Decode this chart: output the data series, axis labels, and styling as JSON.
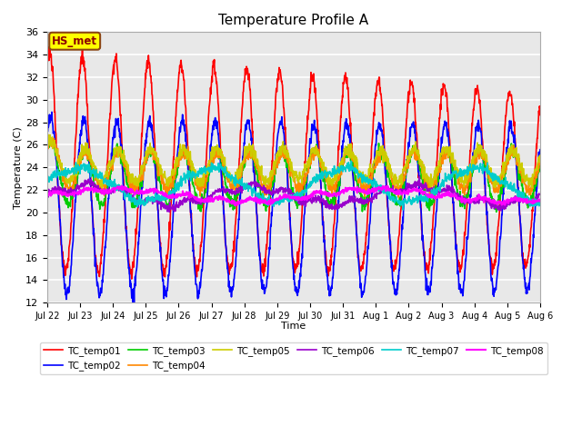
{
  "title": "Temperature Profile A",
  "xlabel": "Time",
  "ylabel": "Temperature (C)",
  "ylim": [
    12,
    36
  ],
  "background_color": "#e8e8e8",
  "fig_background": "#ffffff",
  "annotation_text": "HS_met",
  "annotation_bg": "#ffff00",
  "annotation_border": "#8B4513",
  "legend_entries": [
    "TC_temp01",
    "TC_temp02",
    "TC_temp03",
    "TC_temp04",
    "TC_temp05",
    "TC_temp06",
    "TC_temp07",
    "TC_temp08"
  ],
  "series_colors": [
    "#ff0000",
    "#0000ff",
    "#00cc00",
    "#ff8800",
    "#cccc00",
    "#9900cc",
    "#00cccc",
    "#ff00ff"
  ],
  "series_widths": [
    1.2,
    1.2,
    1.2,
    1.2,
    1.2,
    1.2,
    1.2,
    1.5
  ],
  "xtick_labels": [
    "Jul 22",
    "Jul 23",
    "Jul 24",
    "Jul 25",
    "Jul 26",
    "Jul 27",
    "Jul 28",
    "Jul 29",
    "Jul 30",
    "Jul 31",
    "Aug 1",
    "Aug 2",
    "Aug 3",
    "Aug 4",
    "Aug 5",
    "Aug 6"
  ],
  "ytick_values": [
    12,
    14,
    16,
    18,
    20,
    22,
    24,
    26,
    28,
    30,
    32,
    34,
    36
  ],
  "num_points": 1440
}
